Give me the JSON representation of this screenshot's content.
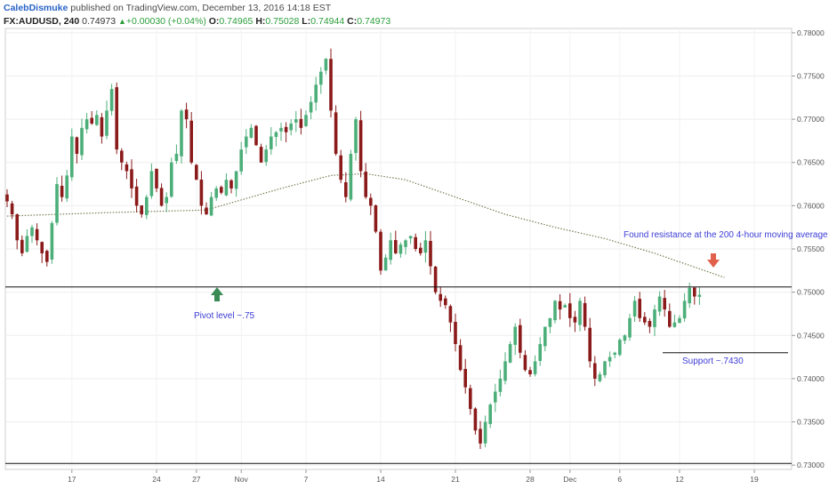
{
  "header": {
    "author": "CalebDismuke",
    "published": " published on TradingView.com, December 13, 2016 14:18 EST",
    "symbol": "FX:AUDUSD, 240",
    "last": "0.74973",
    "change_arrow": "▲",
    "change": "+0.00030 (+0.04%)",
    "open_label": "O:",
    "open": "0.74965",
    "high_label": "H:",
    "high": "0.75028",
    "low_label": "L:",
    "low": "0.74944",
    "close_label": "C:",
    "close": "0.74973"
  },
  "annotations": {
    "pivot": "Pivot level ~.75",
    "support": "Support ~.7430",
    "resistance": "Found resistance at the 200 4-hour moving average"
  },
  "colors": {
    "up": "#4caf7a",
    "down": "#8b1a1a",
    "ma": "#7a7a55",
    "green_arrow": "#3a8a55",
    "red_arrow": "#e0604c",
    "annotation": "#3d3dd6"
  },
  "chart_data": {
    "type": "candlestick",
    "symbol": "FX:AUDUSD",
    "timeframe": "240",
    "ylim": [
      0.7295,
      0.7805
    ],
    "y_ticks": [
      "0.78000",
      "0.77500",
      "0.77000",
      "0.76500",
      "0.76000",
      "0.75500",
      "0.75000",
      "0.74500",
      "0.74000",
      "0.73500",
      "0.73000"
    ],
    "x_ticks": [
      {
        "label": "17",
        "idx": 13
      },
      {
        "label": "24",
        "idx": 30
      },
      {
        "label": "27",
        "idx": 38
      },
      {
        "label": "Nov",
        "idx": 47
      },
      {
        "label": "7",
        "idx": 60
      },
      {
        "label": "14",
        "idx": 75
      },
      {
        "label": "21",
        "idx": 90
      },
      {
        "label": "28",
        "idx": 105
      },
      {
        "label": "Dec",
        "idx": 113
      },
      {
        "label": "6",
        "idx": 123
      },
      {
        "label": "12",
        "idx": 135
      },
      {
        "label": "19",
        "idx": 150
      }
    ],
    "series": [
      {
        "type": "candles",
        "close": [
          0.7605,
          0.759,
          0.756,
          0.7545,
          0.7565,
          0.7575,
          0.756,
          0.7545,
          0.7535,
          0.758,
          0.7625,
          0.761,
          0.7635,
          0.768,
          0.766,
          0.769,
          0.77,
          0.7695,
          0.7705,
          0.768,
          0.771,
          0.7735,
          0.7665,
          0.765,
          0.764,
          0.762,
          0.76,
          0.759,
          0.761,
          0.764,
          0.762,
          0.76,
          0.761,
          0.765,
          0.766,
          0.771,
          0.77,
          0.765,
          0.763,
          0.76,
          0.759,
          0.761,
          0.762,
          0.7615,
          0.763,
          0.762,
          0.764,
          0.7665,
          0.768,
          0.769,
          0.767,
          0.765,
          0.7665,
          0.768,
          0.7685,
          0.769,
          0.7685,
          0.7695,
          0.77,
          0.769,
          0.7705,
          0.772,
          0.774,
          0.7755,
          0.777,
          0.771,
          0.766,
          0.763,
          0.761,
          0.766,
          0.77,
          0.764,
          0.761,
          0.76,
          0.757,
          0.7525,
          0.754,
          0.756,
          0.7545,
          0.7555,
          0.756,
          0.7565,
          0.755,
          0.7545,
          0.756,
          0.753,
          0.75,
          0.749,
          0.7485,
          0.7465,
          0.744,
          0.741,
          0.739,
          0.7365,
          0.734,
          0.7325,
          0.735,
          0.737,
          0.7385,
          0.74,
          0.742,
          0.744,
          0.746,
          0.743,
          0.741,
          0.7405,
          0.742,
          0.744,
          0.746,
          0.747,
          0.749,
          0.748,
          0.7485,
          0.747,
          0.7465,
          0.749,
          0.746,
          0.742,
          0.74,
          0.7405,
          0.742,
          0.7425,
          0.743,
          0.7445,
          0.745,
          0.747,
          0.749,
          0.747,
          0.7465,
          0.746,
          0.748,
          0.7495,
          0.748,
          0.746,
          0.7465,
          0.747,
          0.749,
          0.7505,
          0.7495,
          0.7497
        ],
        "open_prev": true
      }
    ],
    "ma_200": {
      "name": "200 4-hour moving average",
      "start": [
        0,
        0.7588
      ],
      "points": [
        [
          0,
          0.7588
        ],
        [
          20,
          0.7592
        ],
        [
          40,
          0.7595
        ],
        [
          55,
          0.762
        ],
        [
          65,
          0.7635
        ],
        [
          72,
          0.7637
        ],
        [
          80,
          0.763
        ],
        [
          90,
          0.761
        ],
        [
          100,
          0.759
        ],
        [
          110,
          0.7575
        ],
        [
          120,
          0.7562
        ],
        [
          130,
          0.7545
        ],
        [
          140,
          0.7525
        ],
        [
          144,
          0.7517
        ]
      ]
    },
    "lines": [
      {
        "name": "pivot",
        "y": 0.7506
      },
      {
        "name": "support",
        "y": 0.743
      },
      {
        "name": "bottom",
        "y": 0.7302
      }
    ]
  }
}
